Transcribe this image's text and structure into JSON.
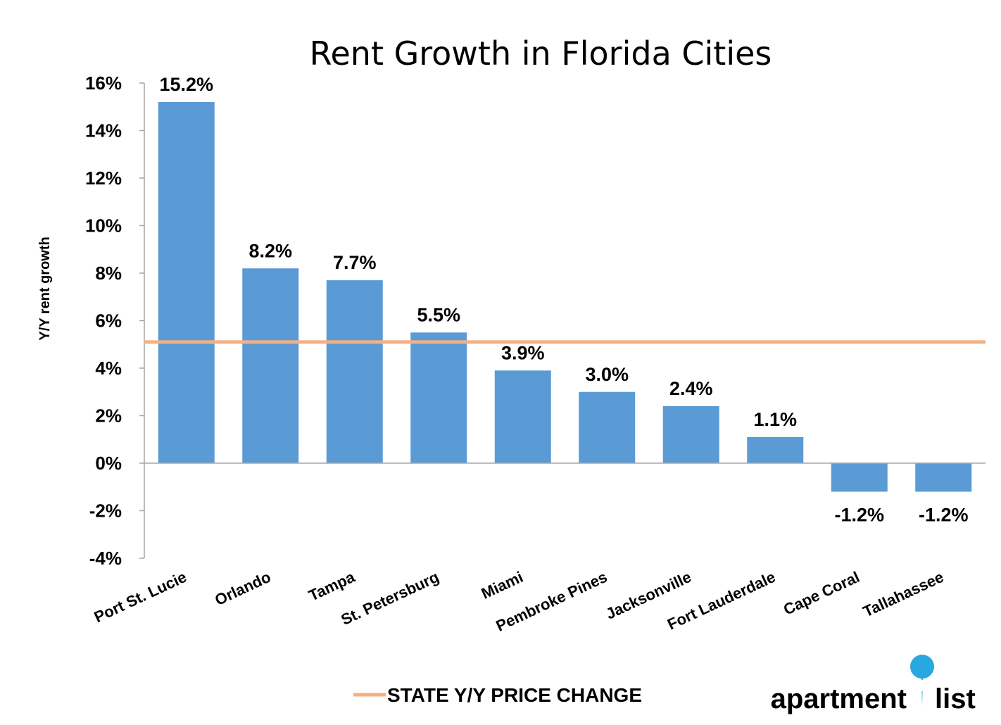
{
  "chart_data": {
    "type": "bar",
    "title": "Rent Growth in Florida Cities",
    "ylabel": "Y/Y rent growth",
    "categories": [
      "Port St. Lucie",
      "Orlando",
      "Tampa",
      "St. Petersburg",
      "Miami",
      "Pembroke Pines",
      "Jacksonville",
      "Fort Lauderdale",
      "Cape Coral",
      "Tallahassee"
    ],
    "values": [
      15.2,
      8.2,
      7.7,
      5.5,
      3.9,
      3.0,
      2.4,
      1.1,
      -1.2,
      -1.2
    ],
    "data_labels": [
      "15.2%",
      "8.2%",
      "7.7%",
      "5.5%",
      "3.9%",
      "3.0%",
      "2.4%",
      "1.1%",
      "-1.2%",
      "-1.2%"
    ],
    "yticks": [
      16,
      14,
      12,
      10,
      8,
      6,
      4,
      2,
      0,
      -2,
      -4
    ],
    "ytick_labels": [
      "16%",
      "14%",
      "12%",
      "10%",
      "8%",
      "6%",
      "4%",
      "2%",
      "0%",
      "-2%",
      "-4%"
    ],
    "ylim": [
      -4,
      16
    ],
    "grid": false,
    "reference_line": {
      "name": "STATE Y/Y PRICE CHANGE",
      "value": 5.1,
      "color": "#f4b183"
    },
    "legend": {
      "placement": "bottom-center",
      "label": "STATE Y/Y PRICE CHANGE"
    },
    "bar_color": "#5b9bd5"
  },
  "branding": {
    "logo_text_left": "apartment",
    "logo_text_right": "list",
    "logo_color": "#29a8e0"
  }
}
